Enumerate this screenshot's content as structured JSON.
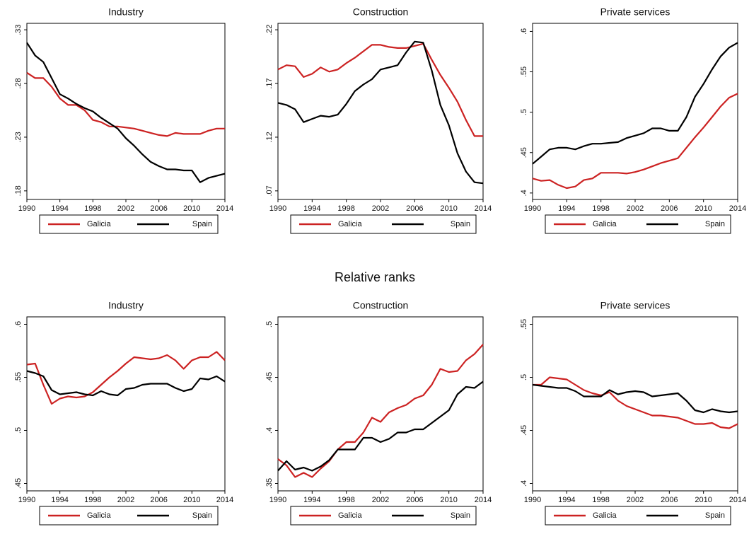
{
  "section_title": "Relative ranks",
  "chart_data": [
    {
      "type": "line",
      "title": "Industry",
      "x": [
        1990,
        1991,
        1992,
        1993,
        1994,
        1995,
        1996,
        1997,
        1998,
        1999,
        2000,
        2001,
        2002,
        2003,
        2004,
        2005,
        2006,
        2007,
        2008,
        2009,
        2010,
        2011,
        2012,
        2013,
        2014
      ],
      "xlim": [
        1990,
        2014
      ],
      "xticks": [
        1990,
        1994,
        1998,
        2002,
        2006,
        2010,
        2014
      ],
      "ylim": [
        0.172,
        0.336
      ],
      "yticks": [
        {
          "value": 0.18,
          "label": ".18"
        },
        {
          "value": 0.23,
          "label": ".23"
        },
        {
          "value": 0.28,
          "label": ".28"
        },
        {
          "value": 0.33,
          "label": ".33"
        }
      ],
      "legend": "bottom",
      "series": [
        {
          "name": "Galicia",
          "color": "#cc2222",
          "values": [
            0.29,
            0.285,
            0.285,
            0.277,
            0.266,
            0.26,
            0.26,
            0.255,
            0.246,
            0.244,
            0.24,
            0.24,
            0.239,
            0.238,
            0.236,
            0.234,
            0.232,
            0.231,
            0.234,
            0.233,
            0.233,
            0.233,
            0.236,
            0.238,
            0.238
          ]
        },
        {
          "name": "Spain",
          "color": "#000000",
          "values": [
            0.318,
            0.306,
            0.3,
            0.285,
            0.27,
            0.266,
            0.261,
            0.257,
            0.254,
            0.248,
            0.243,
            0.238,
            0.229,
            0.222,
            0.214,
            0.207,
            0.203,
            0.2,
            0.2,
            0.199,
            0.199,
            0.188,
            0.192,
            0.194,
            0.196
          ]
        }
      ]
    },
    {
      "type": "line",
      "title": "Construction",
      "x": [
        1990,
        1991,
        1992,
        1993,
        1994,
        1995,
        1996,
        1997,
        1998,
        1999,
        2000,
        2001,
        2002,
        2003,
        2004,
        2005,
        2006,
        2007,
        2008,
        2009,
        2010,
        2011,
        2012,
        2013,
        2014
      ],
      "xlim": [
        1990,
        2014
      ],
      "xticks": [
        1990,
        1994,
        1998,
        2002,
        2006,
        2010,
        2014
      ],
      "ylim": [
        0.062,
        0.226
      ],
      "yticks": [
        {
          "value": 0.07,
          "label": ".07"
        },
        {
          "value": 0.12,
          "label": ".12"
        },
        {
          "value": 0.17,
          "label": ".17"
        },
        {
          "value": 0.22,
          "label": ".22"
        }
      ],
      "legend": "bottom",
      "series": [
        {
          "name": "Galicia",
          "color": "#cc2222",
          "values": [
            0.183,
            0.187,
            0.186,
            0.176,
            0.179,
            0.185,
            0.181,
            0.183,
            0.189,
            0.194,
            0.2,
            0.206,
            0.206,
            0.204,
            0.203,
            0.203,
            0.205,
            0.207,
            0.192,
            0.178,
            0.166,
            0.153,
            0.136,
            0.121,
            0.121
          ]
        },
        {
          "name": "Spain",
          "color": "#000000",
          "values": [
            0.152,
            0.15,
            0.146,
            0.134,
            0.137,
            0.14,
            0.139,
            0.141,
            0.151,
            0.163,
            0.169,
            0.174,
            0.183,
            0.185,
            0.187,
            0.199,
            0.209,
            0.208,
            0.182,
            0.15,
            0.131,
            0.105,
            0.088,
            0.078,
            0.077
          ]
        }
      ]
    },
    {
      "type": "line",
      "title": "Private services",
      "x": [
        1990,
        1991,
        1992,
        1993,
        1994,
        1995,
        1996,
        1997,
        1998,
        1999,
        2000,
        2001,
        2002,
        2003,
        2004,
        2005,
        2006,
        2007,
        2008,
        2009,
        2010,
        2011,
        2012,
        2013,
        2014
      ],
      "xlim": [
        1990,
        2014
      ],
      "xticks": [
        1990,
        1994,
        1998,
        2002,
        2006,
        2010,
        2014
      ],
      "ylim": [
        0.392,
        0.61
      ],
      "yticks": [
        {
          "value": 0.4,
          "label": ".4"
        },
        {
          "value": 0.45,
          "label": ".45"
        },
        {
          "value": 0.5,
          "label": ".5"
        },
        {
          "value": 0.55,
          "label": ".55"
        },
        {
          "value": 0.6,
          "label": ".6"
        }
      ],
      "legend": "bottom",
      "series": [
        {
          "name": "Galicia",
          "color": "#cc2222",
          "values": [
            0.418,
            0.415,
            0.416,
            0.41,
            0.406,
            0.408,
            0.416,
            0.418,
            0.425,
            0.425,
            0.425,
            0.424,
            0.426,
            0.429,
            0.433,
            0.437,
            0.44,
            0.443,
            0.456,
            0.469,
            0.481,
            0.494,
            0.507,
            0.518,
            0.523
          ]
        },
        {
          "name": "Spain",
          "color": "#000000",
          "values": [
            0.436,
            0.445,
            0.454,
            0.456,
            0.456,
            0.454,
            0.458,
            0.461,
            0.461,
            0.462,
            0.463,
            0.468,
            0.471,
            0.474,
            0.48,
            0.48,
            0.477,
            0.477,
            0.494,
            0.519,
            0.535,
            0.553,
            0.569,
            0.58,
            0.586
          ]
        }
      ]
    },
    {
      "type": "line",
      "title": "Industry",
      "x": [
        1990,
        1991,
        1992,
        1993,
        1994,
        1995,
        1996,
        1997,
        1998,
        1999,
        2000,
        2001,
        2002,
        2003,
        2004,
        2005,
        2006,
        2007,
        2008,
        2009,
        2010,
        2011,
        2012,
        2013,
        2014
      ],
      "xlim": [
        1990,
        2014
      ],
      "xticks": [
        1990,
        1994,
        1998,
        2002,
        2006,
        2010,
        2014
      ],
      "ylim": [
        0.443,
        0.607
      ],
      "yticks": [
        {
          "value": 0.45,
          "label": ".45"
        },
        {
          "value": 0.5,
          "label": ".5"
        },
        {
          "value": 0.55,
          "label": ".55"
        },
        {
          "value": 0.6,
          "label": ".6"
        }
      ],
      "legend": "bottom",
      "series": [
        {
          "name": "Galicia",
          "color": "#cc2222",
          "values": [
            0.562,
            0.563,
            0.543,
            0.525,
            0.53,
            0.532,
            0.531,
            0.532,
            0.536,
            0.543,
            0.55,
            0.556,
            0.563,
            0.569,
            0.568,
            0.567,
            0.568,
            0.571,
            0.566,
            0.558,
            0.566,
            0.569,
            0.569,
            0.574,
            0.566
          ]
        },
        {
          "name": "Spain",
          "color": "#000000",
          "values": [
            0.556,
            0.554,
            0.551,
            0.538,
            0.534,
            0.535,
            0.536,
            0.534,
            0.533,
            0.537,
            0.534,
            0.533,
            0.539,
            0.54,
            0.543,
            0.544,
            0.544,
            0.544,
            0.54,
            0.537,
            0.539,
            0.549,
            0.548,
            0.551,
            0.546
          ]
        }
      ]
    },
    {
      "type": "line",
      "title": "Construction",
      "x": [
        1990,
        1991,
        1992,
        1993,
        1994,
        1995,
        1996,
        1997,
        1998,
        1999,
        2000,
        2001,
        2002,
        2003,
        2004,
        2005,
        2006,
        2007,
        2008,
        2009,
        2010,
        2011,
        2012,
        2013,
        2014
      ],
      "xlim": [
        1990,
        2014
      ],
      "xticks": [
        1990,
        1994,
        1998,
        2002,
        2006,
        2010,
        2014
      ],
      "ylim": [
        0.343,
        0.507
      ],
      "yticks": [
        {
          "value": 0.35,
          "label": ".35"
        },
        {
          "value": 0.4,
          "label": ".4"
        },
        {
          "value": 0.45,
          "label": ".45"
        },
        {
          "value": 0.5,
          "label": ".5"
        }
      ],
      "legend": "bottom",
      "series": [
        {
          "name": "Galicia",
          "color": "#cc2222",
          "values": [
            0.373,
            0.367,
            0.356,
            0.36,
            0.356,
            0.364,
            0.371,
            0.382,
            0.389,
            0.389,
            0.398,
            0.412,
            0.408,
            0.417,
            0.421,
            0.424,
            0.43,
            0.433,
            0.443,
            0.458,
            0.455,
            0.456,
            0.466,
            0.472,
            0.481
          ]
        },
        {
          "name": "Spain",
          "color": "#000000",
          "values": [
            0.362,
            0.371,
            0.363,
            0.365,
            0.362,
            0.366,
            0.372,
            0.382,
            0.382,
            0.382,
            0.393,
            0.393,
            0.389,
            0.392,
            0.398,
            0.398,
            0.401,
            0.401,
            0.407,
            0.413,
            0.419,
            0.434,
            0.441,
            0.44,
            0.446
          ]
        }
      ]
    },
    {
      "type": "line",
      "title": "Private services",
      "x": [
        1990,
        1991,
        1992,
        1993,
        1994,
        1995,
        1996,
        1997,
        1998,
        1999,
        2000,
        2001,
        2002,
        2003,
        2004,
        2005,
        2006,
        2007,
        2008,
        2009,
        2010,
        2011,
        2012,
        2013,
        2014
      ],
      "xlim": [
        1990,
        2014
      ],
      "xticks": [
        1990,
        1994,
        1998,
        2002,
        2006,
        2010,
        2014
      ],
      "ylim": [
        0.393,
        0.557
      ],
      "yticks": [
        {
          "value": 0.4,
          "label": ".4"
        },
        {
          "value": 0.45,
          "label": ".45"
        },
        {
          "value": 0.5,
          "label": ".5"
        },
        {
          "value": 0.55,
          "label": ".55"
        }
      ],
      "legend": "bottom",
      "series": [
        {
          "name": "Galicia",
          "color": "#cc2222",
          "values": [
            0.493,
            0.493,
            0.5,
            0.499,
            0.498,
            0.493,
            0.488,
            0.485,
            0.483,
            0.486,
            0.478,
            0.473,
            0.47,
            0.467,
            0.464,
            0.464,
            0.463,
            0.462,
            0.459,
            0.456,
            0.456,
            0.457,
            0.453,
            0.452,
            0.456
          ]
        },
        {
          "name": "Spain",
          "color": "#000000",
          "values": [
            0.493,
            0.492,
            0.491,
            0.49,
            0.49,
            0.487,
            0.482,
            0.482,
            0.482,
            0.488,
            0.484,
            0.486,
            0.487,
            0.486,
            0.482,
            0.483,
            0.484,
            0.485,
            0.478,
            0.469,
            0.467,
            0.47,
            0.468,
            0.467,
            0.468
          ]
        }
      ]
    }
  ]
}
